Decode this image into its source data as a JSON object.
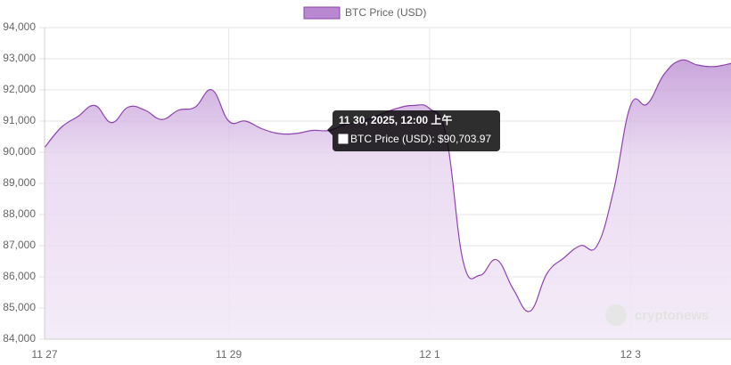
{
  "chart_data": {
    "type": "line",
    "categories": [
      "11 27",
      null,
      null,
      null,
      null,
      null,
      null,
      null,
      null,
      null,
      null,
      "11 29",
      null,
      null,
      null,
      null,
      null,
      null,
      null,
      null,
      null,
      null,
      null,
      "12 1",
      null,
      null,
      null,
      null,
      null,
      null,
      null,
      null,
      null,
      null,
      null,
      "12 3",
      null,
      null,
      null,
      null,
      null,
      null
    ],
    "series": [
      {
        "name": "BTC Price (USD)",
        "color": "#8e44ad",
        "fill": "#b888d0",
        "values": [
          90150,
          90800,
          91150,
          91500,
          90950,
          91450,
          91350,
          91050,
          91350,
          91450,
          92000,
          91000,
          91000,
          90750,
          90600,
          90600,
          90700,
          90700,
          90900,
          91000,
          91200,
          91400,
          91500,
          91400,
          90500,
          86500,
          86050,
          86550,
          85600,
          84900,
          86100,
          86600,
          87000,
          87000,
          88800,
          91500,
          91550,
          92500,
          92950,
          92800,
          92750,
          92850
        ]
      }
    ],
    "ylim": [
      84000,
      94000
    ],
    "yticks": [
      {
        "value": 84000,
        "label": "84,000"
      },
      {
        "value": 85000,
        "label": "85,000"
      },
      {
        "value": 86000,
        "label": "86,000"
      },
      {
        "value": 87000,
        "label": "87,000"
      },
      {
        "value": 88000,
        "label": "88,000"
      },
      {
        "value": 89000,
        "label": "89,000"
      },
      {
        "value": 90000,
        "label": "90,000"
      },
      {
        "value": 91000,
        "label": "91,000"
      },
      {
        "value": 92000,
        "label": "92,000"
      },
      {
        "value": 93000,
        "label": "93,000"
      },
      {
        "value": 94000,
        "label": "94,000"
      }
    ],
    "grid": true,
    "legend": "top",
    "tooltip": {
      "index": 17,
      "title": "11 30, 2025, 12:00 上午",
      "body": "BTC Price (USD): $90,703.97"
    },
    "watermark": "cryptonews"
  }
}
